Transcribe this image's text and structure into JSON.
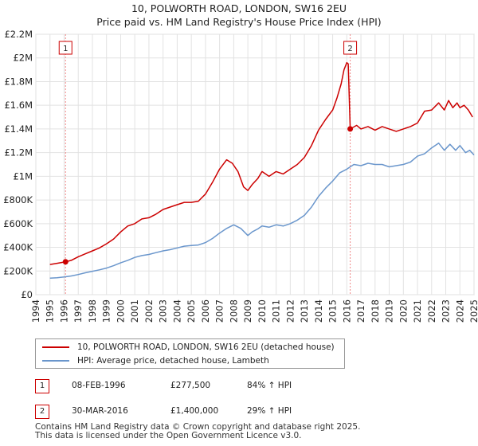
{
  "title": "10, POLWORTH ROAD, LONDON, SW16 2EU",
  "subtitle": "Price paid vs. HM Land Registry's House Price Index (HPI)",
  "colors": {
    "price_line": "#cc0000",
    "hpi_line": "#6a96cc",
    "grid": "#e2e2e2",
    "marker_border": "#cc0000"
  },
  "chart_data": {
    "type": "line",
    "xlim": [
      1994,
      2025
    ],
    "ylim": [
      0,
      2200000
    ],
    "y_ticks": [
      0,
      200000,
      400000,
      600000,
      800000,
      1000000,
      1200000,
      1400000,
      1600000,
      1800000,
      2000000,
      2200000
    ],
    "y_tick_labels": [
      "£0",
      "£200K",
      "£400K",
      "£600K",
      "£800K",
      "£1M",
      "£1.2M",
      "£1.4M",
      "£1.6M",
      "£1.8M",
      "£2M",
      "£2.2M"
    ],
    "x_ticks": [
      "1994",
      "1995",
      "1996",
      "1997",
      "1998",
      "1999",
      "2000",
      "2001",
      "2002",
      "2003",
      "2004",
      "2005",
      "2006",
      "2007",
      "2008",
      "2009",
      "2010",
      "2011",
      "2012",
      "2013",
      "2014",
      "2015",
      "2016",
      "2017",
      "2018",
      "2019",
      "2020",
      "2021",
      "2022",
      "2023",
      "2024",
      "2025"
    ],
    "series": [
      {
        "name": "10, POLWORTH ROAD, LONDON, SW16 2EU (detached house)",
        "color": "#cc0000",
        "x": [
          1995.0,
          1995.5,
          1996.1,
          1996.5,
          1997.0,
          1997.5,
          1998.0,
          1998.5,
          1999.0,
          1999.5,
          2000.0,
          2000.5,
          2001.0,
          2001.5,
          2002.0,
          2002.5,
          2003.0,
          2003.5,
          2004.0,
          2004.5,
          2005.0,
          2005.5,
          2006.0,
          2006.5,
          2007.0,
          2007.5,
          2007.9,
          2008.3,
          2008.7,
          2009.0,
          2009.3,
          2009.7,
          2010.0,
          2010.5,
          2011.0,
          2011.5,
          2012.0,
          2012.5,
          2013.0,
          2013.5,
          2014.0,
          2014.5,
          2015.0,
          2015.3,
          2015.6,
          2015.8,
          2016.0,
          2016.1,
          2016.24,
          2016.4,
          2016.7,
          2017.0,
          2017.5,
          2018.0,
          2018.5,
          2019.0,
          2019.5,
          2020.0,
          2020.5,
          2021.0,
          2021.5,
          2022.0,
          2022.5,
          2022.9,
          2023.2,
          2023.5,
          2023.8,
          2024.0,
          2024.3,
          2024.6,
          2024.9
        ],
        "values": [
          255000,
          265000,
          277500,
          290000,
          320000,
          345000,
          370000,
          395000,
          430000,
          470000,
          530000,
          580000,
          600000,
          640000,
          650000,
          680000,
          720000,
          740000,
          760000,
          780000,
          780000,
          790000,
          850000,
          950000,
          1060000,
          1140000,
          1110000,
          1040000,
          910000,
          880000,
          930000,
          980000,
          1040000,
          1000000,
          1040000,
          1020000,
          1060000,
          1100000,
          1160000,
          1260000,
          1390000,
          1480000,
          1560000,
          1660000,
          1780000,
          1900000,
          1960000,
          1950000,
          1400000,
          1410000,
          1430000,
          1400000,
          1420000,
          1390000,
          1420000,
          1400000,
          1380000,
          1400000,
          1420000,
          1450000,
          1550000,
          1560000,
          1620000,
          1560000,
          1640000,
          1580000,
          1620000,
          1580000,
          1600000,
          1560000,
          1500000
        ]
      },
      {
        "name": "HPI: Average price, detached house, Lambeth",
        "color": "#6a96cc",
        "x": [
          1995.0,
          1995.5,
          1996.0,
          1996.5,
          1997.0,
          1997.5,
          1998.0,
          1998.5,
          1999.0,
          1999.5,
          2000.0,
          2000.5,
          2001.0,
          2001.5,
          2002.0,
          2002.5,
          2003.0,
          2003.5,
          2004.0,
          2004.5,
          2005.0,
          2005.5,
          2006.0,
          2006.5,
          2007.0,
          2007.5,
          2008.0,
          2008.5,
          2009.0,
          2009.3,
          2009.7,
          2010.0,
          2010.5,
          2011.0,
          2011.5,
          2012.0,
          2012.5,
          2013.0,
          2013.5,
          2014.0,
          2014.5,
          2015.0,
          2015.5,
          2016.0,
          2016.24,
          2016.5,
          2017.0,
          2017.5,
          2018.0,
          2018.5,
          2019.0,
          2019.5,
          2020.0,
          2020.5,
          2021.0,
          2021.5,
          2022.0,
          2022.5,
          2022.9,
          2023.3,
          2023.7,
          2024.0,
          2024.4,
          2024.7,
          2025.0
        ],
        "values": [
          140000,
          143000,
          150000,
          158000,
          170000,
          185000,
          198000,
          210000,
          225000,
          245000,
          270000,
          290000,
          315000,
          330000,
          340000,
          355000,
          370000,
          380000,
          395000,
          410000,
          415000,
          420000,
          440000,
          475000,
          520000,
          560000,
          590000,
          560000,
          500000,
          530000,
          555000,
          580000,
          570000,
          590000,
          580000,
          600000,
          630000,
          670000,
          740000,
          830000,
          900000,
          960000,
          1030000,
          1060000,
          1080000,
          1100000,
          1090000,
          1110000,
          1100000,
          1100000,
          1080000,
          1090000,
          1100000,
          1120000,
          1170000,
          1190000,
          1240000,
          1280000,
          1220000,
          1270000,
          1220000,
          1260000,
          1200000,
          1220000,
          1180000
        ]
      }
    ],
    "markers": [
      {
        "label": "1",
        "x": 1996.1,
        "y": 277500
      },
      {
        "label": "2",
        "x": 2016.24,
        "y": 1400000
      }
    ]
  },
  "legend": {
    "items": [
      {
        "label": "10, POLWORTH ROAD, LONDON, SW16 2EU (detached house)",
        "color": "#cc0000"
      },
      {
        "label": "HPI: Average price, detached house, Lambeth",
        "color": "#6a96cc"
      }
    ]
  },
  "transactions": [
    {
      "num": "1",
      "date": "08-FEB-1996",
      "price": "£277,500",
      "hpi": "84% ↑ HPI"
    },
    {
      "num": "2",
      "date": "30-MAR-2016",
      "price": "£1,400,000",
      "hpi": "29% ↑ HPI"
    }
  ],
  "footer": {
    "line1": "Contains HM Land Registry data © Crown copyright and database right 2025.",
    "line2": "This data is licensed under the Open Government Licence v3.0."
  }
}
